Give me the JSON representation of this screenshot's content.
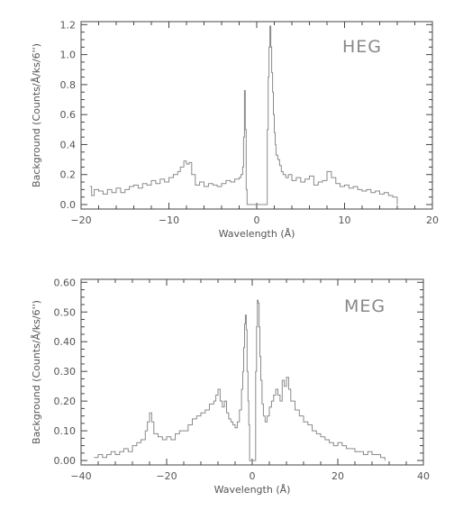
{
  "chart_data": [
    {
      "type": "line",
      "panel_label": "HEG",
      "xlabel": "Wavelength (Å)",
      "ylabel": "Background (Counts/Å/ks/6'')",
      "xlim": [
        -20,
        20
      ],
      "ylim": [
        -0.03,
        1.22
      ],
      "x_ticks": [
        -20,
        -10,
        0,
        10,
        20
      ],
      "x_tick_labels": [
        "−20",
        "−10",
        "0",
        "10",
        "20"
      ],
      "y_ticks": [
        0.0,
        0.2,
        0.4,
        0.6,
        0.8,
        1.0,
        1.2
      ],
      "y_tick_labels": [
        "0.0",
        "0.2",
        "0.4",
        "0.6",
        "0.8",
        "1.0",
        "1.2"
      ],
      "grid": false,
      "series_color": "#8a8a8a",
      "series": [
        {
          "x": [
            -19.0,
            -18.8,
            -18.5,
            -18.0,
            -17.5,
            -17.0,
            -16.5,
            -16.0,
            -15.5,
            -15.0,
            -14.5,
            -14.0,
            -13.5,
            -13.0,
            -12.5,
            -12.0,
            -11.5,
            -11.0,
            -10.5,
            -10.0,
            -9.5,
            -9.0,
            -8.7,
            -8.3,
            -8.0,
            -7.7,
            -7.4,
            -7.0,
            -6.5,
            -6.0,
            -5.5,
            -5.0,
            -4.5,
            -4.0,
            -3.5,
            -3.0,
            -2.5,
            -2.0,
            -1.8,
            -1.6,
            -1.5,
            -1.4,
            -1.3,
            -1.2,
            -1.1,
            1.1,
            1.2,
            1.3,
            1.4,
            1.5,
            1.6,
            1.7,
            1.8,
            1.9,
            2.0,
            2.1,
            2.2,
            2.4,
            2.6,
            2.8,
            3.0,
            3.3,
            3.6,
            4.0,
            4.5,
            5.0,
            5.5,
            6.0,
            6.5,
            7.0,
            7.5,
            8.0,
            8.5,
            9.0,
            9.5,
            10.0,
            10.5,
            11.0,
            11.5,
            12.0,
            12.5,
            13.0,
            13.5,
            14.0,
            14.5,
            15.0,
            15.5,
            16.0
          ],
          "y": [
            0.12,
            0.06,
            0.1,
            0.09,
            0.07,
            0.1,
            0.08,
            0.11,
            0.08,
            0.1,
            0.12,
            0.13,
            0.11,
            0.14,
            0.13,
            0.16,
            0.14,
            0.17,
            0.15,
            0.18,
            0.2,
            0.22,
            0.25,
            0.29,
            0.27,
            0.28,
            0.2,
            0.13,
            0.15,
            0.12,
            0.14,
            0.13,
            0.12,
            0.14,
            0.16,
            0.15,
            0.17,
            0.18,
            0.2,
            0.25,
            0.45,
            0.76,
            0.5,
            0.1,
            0.0,
            0.0,
            0.5,
            0.85,
            1.05,
            1.19,
            1.05,
            0.88,
            0.75,
            0.6,
            0.48,
            0.4,
            0.33,
            0.3,
            0.26,
            0.22,
            0.2,
            0.18,
            0.2,
            0.16,
            0.18,
            0.15,
            0.17,
            0.19,
            0.13,
            0.15,
            0.16,
            0.22,
            0.18,
            0.14,
            0.12,
            0.13,
            0.11,
            0.12,
            0.1,
            0.09,
            0.1,
            0.08,
            0.09,
            0.07,
            0.08,
            0.06,
            0.05,
            0.0
          ]
        }
      ]
    },
    {
      "type": "line",
      "panel_label": "MEG",
      "xlabel": "Wavelength (Å)",
      "ylabel": "Background (Counts/Å/ks/6'')",
      "xlim": [
        -40,
        40
      ],
      "ylim": [
        -0.015,
        0.61
      ],
      "x_ticks": [
        -40,
        -20,
        0,
        20,
        40
      ],
      "x_tick_labels": [
        "−40",
        "−20",
        "0",
        "20",
        "40"
      ],
      "y_ticks": [
        0.0,
        0.1,
        0.2,
        0.3,
        0.4,
        0.5,
        0.6
      ],
      "y_tick_labels": [
        "0.00",
        "0.10",
        "0.20",
        "0.30",
        "0.40",
        "0.50",
        "0.60"
      ],
      "grid": false,
      "series_color": "#8a8a8a",
      "series": [
        {
          "x": [
            -37.0,
            -36.0,
            -35.0,
            -34.0,
            -33.0,
            -32.0,
            -31.0,
            -30.0,
            -29.0,
            -28.0,
            -27.0,
            -26.0,
            -25.0,
            -24.5,
            -24.0,
            -23.5,
            -23.0,
            -22.0,
            -21.0,
            -20.0,
            -19.0,
            -18.0,
            -17.0,
            -16.0,
            -15.0,
            -14.0,
            -13.0,
            -12.0,
            -11.0,
            -10.0,
            -9.0,
            -8.5,
            -8.0,
            -7.5,
            -7.0,
            -6.5,
            -6.0,
            -5.5,
            -5.0,
            -4.5,
            -4.0,
            -3.5,
            -3.0,
            -2.5,
            -2.2,
            -2.0,
            -1.8,
            -1.6,
            -1.4,
            -1.2,
            -1.0,
            -0.8,
            -0.6,
            0.6,
            0.8,
            1.0,
            1.2,
            1.4,
            1.6,
            1.8,
            2.0,
            2.3,
            2.6,
            3.0,
            3.5,
            4.0,
            4.5,
            5.0,
            5.5,
            6.0,
            6.5,
            7.0,
            7.5,
            8.0,
            8.5,
            9.0,
            10.0,
            11.0,
            12.0,
            13.0,
            14.0,
            15.0,
            16.0,
            17.0,
            18.0,
            19.0,
            20.0,
            21.0,
            22.0,
            23.0,
            24.0,
            25.0,
            26.0,
            27.0,
            28.0,
            29.0,
            30.0,
            31.0
          ],
          "y": [
            0.01,
            0.02,
            0.01,
            0.02,
            0.03,
            0.02,
            0.03,
            0.04,
            0.03,
            0.05,
            0.06,
            0.07,
            0.1,
            0.13,
            0.16,
            0.13,
            0.09,
            0.08,
            0.07,
            0.08,
            0.07,
            0.09,
            0.1,
            0.1,
            0.12,
            0.14,
            0.15,
            0.16,
            0.17,
            0.19,
            0.2,
            0.22,
            0.24,
            0.2,
            0.18,
            0.2,
            0.16,
            0.14,
            0.13,
            0.12,
            0.11,
            0.13,
            0.17,
            0.24,
            0.3,
            0.38,
            0.46,
            0.49,
            0.44,
            0.3,
            0.2,
            0.12,
            0.0,
            0.0,
            0.3,
            0.45,
            0.54,
            0.53,
            0.45,
            0.35,
            0.27,
            0.19,
            0.15,
            0.13,
            0.15,
            0.18,
            0.2,
            0.22,
            0.24,
            0.22,
            0.2,
            0.27,
            0.25,
            0.28,
            0.24,
            0.2,
            0.17,
            0.15,
            0.13,
            0.12,
            0.1,
            0.09,
            0.08,
            0.07,
            0.06,
            0.05,
            0.06,
            0.05,
            0.04,
            0.04,
            0.03,
            0.03,
            0.02,
            0.03,
            0.02,
            0.02,
            0.01,
            0.0
          ]
        }
      ]
    }
  ]
}
